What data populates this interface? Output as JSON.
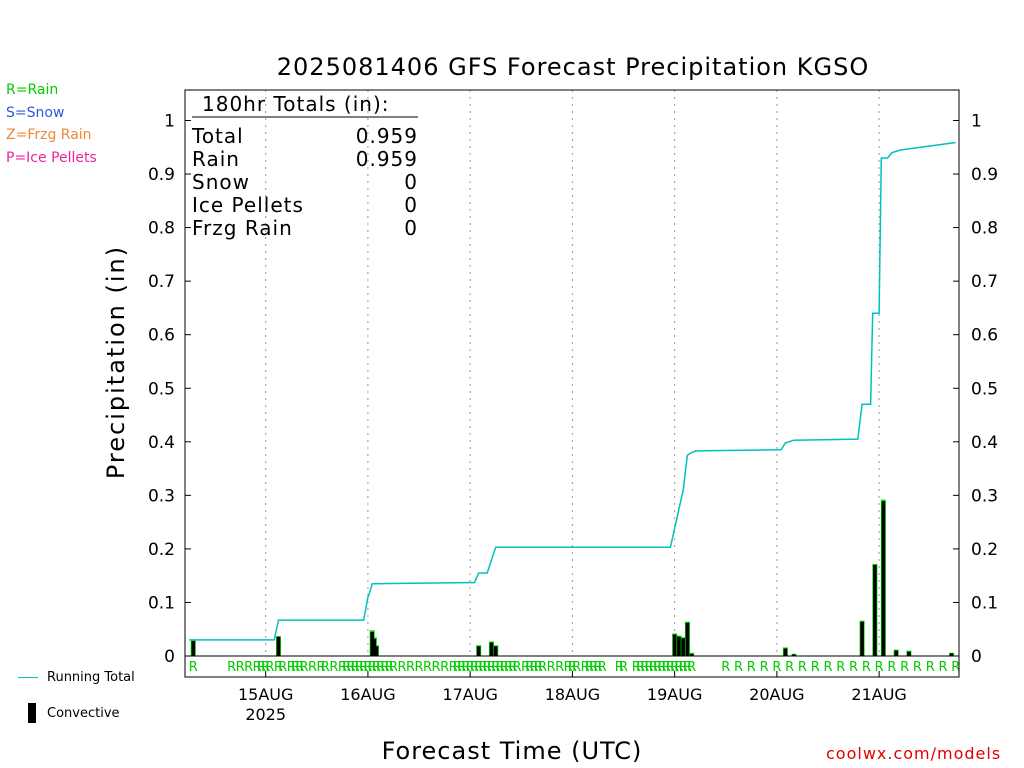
{
  "precip_types": [
    {
      "label": "R=Rain",
      "color": "#00cc00"
    },
    {
      "label": "S=Snow",
      "color": "#3355dd"
    },
    {
      "label": "Z=Frzg Rain",
      "color": "#ee8833"
    },
    {
      "label": "P=Ice Pellets",
      "color": "#ee2299"
    }
  ],
  "legend": {
    "running_total": "Running Total",
    "convective": "Convective"
  },
  "credit": "coolwx.com/models",
  "colors": {
    "running_total": "#00c0c0",
    "rain_bar": "#00dd00",
    "convective_bar": "#000000",
    "rain_marker": "#00cc00",
    "credit": "#e00000"
  },
  "chart_data": {
    "type": "bar",
    "title": "2025081406 GFS Forecast Precipitation KGSO",
    "ylabel": "Precipitation (in)",
    "xlabel": "Forecast Time (UTC)",
    "ylim": [
      0,
      1.05
    ],
    "y_ticks": [
      "0",
      "0.1",
      "0.2",
      "0.3",
      "0.4",
      "0.5",
      "0.6",
      "0.7",
      "0.8",
      "0.9",
      "1"
    ],
    "x_unit": "forecast hour (0 = 2025-08-14 06 UTC)",
    "xlim": [
      0,
      180
    ],
    "x_ticks": [
      {
        "hour": 18,
        "label": "15AUG",
        "sublabel": "2025"
      },
      {
        "hour": 42,
        "label": "16AUG",
        "sublabel": ""
      },
      {
        "hour": 66,
        "label": "17AUG",
        "sublabel": ""
      },
      {
        "hour": 90,
        "label": "18AUG",
        "sublabel": ""
      },
      {
        "hour": 114,
        "label": "19AUG",
        "sublabel": ""
      },
      {
        "hour": 138,
        "label": "20AUG",
        "sublabel": ""
      },
      {
        "hour": 162,
        "label": "21AUG",
        "sublabel": ""
      }
    ],
    "grid": "vertical dotted at day boundaries",
    "totals_box": {
      "heading": "180hr Totals (in):",
      "rows": [
        {
          "label": "Total",
          "value": "0.959"
        },
        {
          "label": "Rain",
          "value": "0.959"
        },
        {
          "label": "Snow",
          "value": "0"
        },
        {
          "label": "Ice Pellets",
          "value": "0"
        },
        {
          "label": "Frzg Rain",
          "value": "0"
        }
      ]
    },
    "series": [
      {
        "name": "Running Total",
        "type": "step-line",
        "points": [
          [
            0,
            0.03
          ],
          [
            20,
            0.03
          ],
          [
            21,
            0.067
          ],
          [
            41,
            0.067
          ],
          [
            42,
            0.11
          ],
          [
            42.5,
            0.12
          ],
          [
            43,
            0.135
          ],
          [
            65,
            0.137
          ],
          [
            67,
            0.137
          ],
          [
            68,
            0.155
          ],
          [
            70,
            0.155
          ],
          [
            72,
            0.203
          ],
          [
            113,
            0.203
          ],
          [
            116,
            0.31
          ],
          [
            117,
            0.375
          ],
          [
            118,
            0.38
          ],
          [
            119,
            0.383
          ],
          [
            139,
            0.385
          ],
          [
            140,
            0.398
          ],
          [
            142,
            0.403
          ],
          [
            157,
            0.405
          ],
          [
            158,
            0.47
          ],
          [
            160,
            0.47
          ],
          [
            160.5,
            0.64
          ],
          [
            162,
            0.64
          ],
          [
            162.5,
            0.93
          ],
          [
            164,
            0.93
          ],
          [
            165,
            0.94
          ],
          [
            167,
            0.945
          ],
          [
            180,
            0.959
          ]
        ]
      },
      {
        "name": "Convective",
        "type": "bar",
        "points": [
          [
            1,
            0.028
          ],
          [
            21,
            0.036
          ],
          [
            43,
            0.045
          ],
          [
            43.5,
            0.032
          ],
          [
            44,
            0.018
          ],
          [
            68,
            0.018
          ],
          [
            71,
            0.025
          ],
          [
            72,
            0.018
          ],
          [
            114,
            0.04
          ],
          [
            115,
            0.036
          ],
          [
            116,
            0.033
          ],
          [
            117,
            0.062
          ],
          [
            118,
            0.004
          ],
          [
            140,
            0.014
          ],
          [
            142,
            0.003
          ],
          [
            158,
            0.064
          ],
          [
            161,
            0.17
          ],
          [
            163,
            0.289
          ],
          [
            166,
            0.01
          ],
          [
            169,
            0.008
          ],
          [
            179,
            0.005
          ]
        ]
      },
      {
        "name": "Rain",
        "type": "bar",
        "points": [
          [
            1,
            0.03
          ],
          [
            21,
            0.037
          ],
          [
            43,
            0.048
          ],
          [
            43.5,
            0.035
          ],
          [
            44,
            0.02
          ],
          [
            68,
            0.02
          ],
          [
            71,
            0.027
          ],
          [
            72,
            0.02
          ],
          [
            114,
            0.042
          ],
          [
            115,
            0.038
          ],
          [
            116,
            0.035
          ],
          [
            117,
            0.064
          ],
          [
            118,
            0.006
          ],
          [
            140,
            0.016
          ],
          [
            142,
            0.004
          ],
          [
            158,
            0.066
          ],
          [
            161,
            0.172
          ],
          [
            163,
            0.292
          ],
          [
            166,
            0.012
          ],
          [
            169,
            0.01
          ],
          [
            179,
            0.006
          ]
        ]
      }
    ],
    "precip_markers": {
      "symbol": "R",
      "hours": [
        1,
        10,
        12,
        14,
        16,
        17,
        18,
        19,
        21,
        22,
        24,
        25,
        26,
        27,
        29,
        31,
        32,
        34,
        36,
        37,
        38,
        39,
        40,
        41,
        42,
        43,
        44,
        45,
        46,
        47,
        48,
        50,
        52,
        54,
        56,
        58,
        60,
        62,
        63,
        64,
        65,
        66,
        67,
        68,
        69,
        70,
        71,
        72,
        73,
        74,
        75,
        76,
        77,
        79,
        80,
        81,
        82,
        83,
        85,
        87,
        89,
        90,
        91,
        93,
        94,
        95,
        96,
        97,
        101,
        102,
        105,
        106,
        107,
        108,
        109,
        110,
        111,
        112,
        113,
        114,
        115,
        116,
        117,
        118,
        126,
        129,
        132,
        135,
        138,
        141,
        144,
        147,
        150,
        153,
        156,
        159,
        162,
        165,
        168,
        171,
        174,
        177,
        180
      ]
    },
    "right_axis": "mirror of left"
  }
}
